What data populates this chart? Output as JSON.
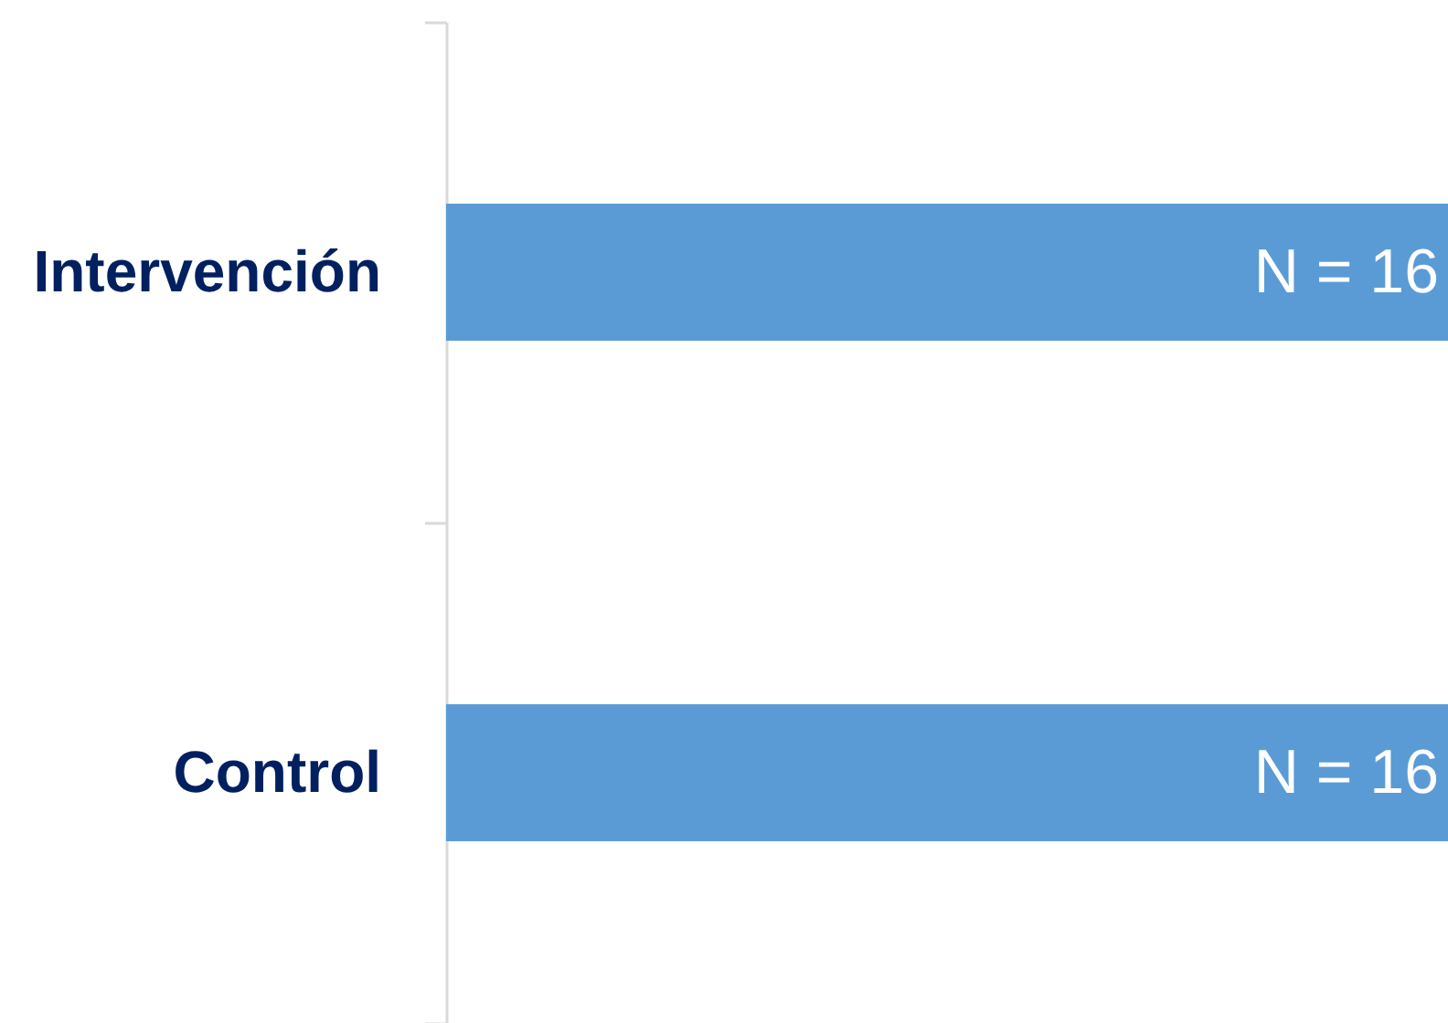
{
  "chart_data": {
    "type": "bar",
    "orientation": "horizontal",
    "categories": [
      "Intervención",
      "Control"
    ],
    "values": [
      16,
      16
    ],
    "value_labels": [
      "N = 16",
      "N = 16"
    ],
    "color": "#5b9bd5"
  }
}
